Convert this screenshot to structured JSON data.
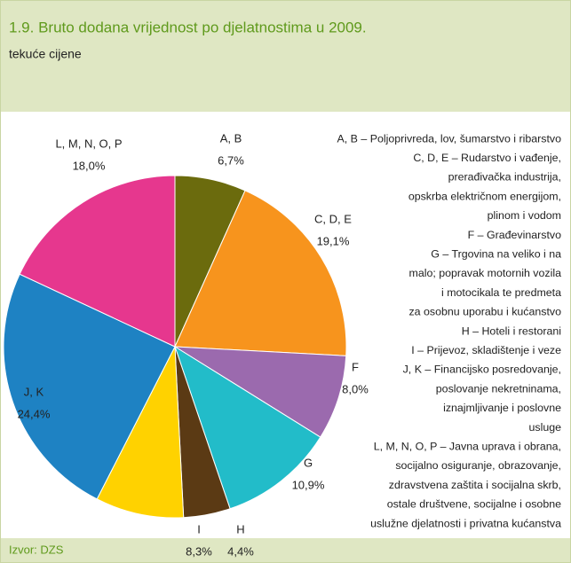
{
  "chart_data": {
    "type": "pie",
    "title": "1.9. Bruto dodana vrijednost po djelatnostima u 2009.",
    "subtitle": "tekuće cijene",
    "categories": [
      "A, B",
      "C, D, E",
      "F",
      "G",
      "H",
      "I",
      "J, K",
      "L, M, N, O, P"
    ],
    "values": [
      6.7,
      19.1,
      8.0,
      10.9,
      4.4,
      8.3,
      24.4,
      18.0
    ],
    "value_labels": [
      "6,7%",
      "19,1%",
      "8,0%",
      "10,9%",
      "4,4%",
      "8,3%",
      "24,4%",
      "18,0%"
    ],
    "colors": [
      "#6b6b0d",
      "#f7941d",
      "#9b6aae",
      "#22bcc9",
      "#5b3a14",
      "#ffd200",
      "#1e82c3",
      "#e6378e"
    ],
    "legend": [
      [
        "A, B – Poljoprivreda, lov, šumarstvo i ribarstvo"
      ],
      [
        "C, D, E – Rudarstvo i vađenje,",
        "prerađivačka industrija,",
        "opskrba električnom energijom,",
        "plinom i vodom"
      ],
      [
        "F – Građevinarstvo"
      ],
      [
        "G – Trgovina na veliko i na",
        "malo; popravak motornih vozila",
        "i motocikala te predmeta",
        "za osobnu uporabu i kućanstvo"
      ],
      [
        "H – Hoteli i restorani"
      ],
      [
        "I – Prijevoz, skladištenje i veze"
      ],
      [
        "J, K – Financijsko posredovanje,",
        "poslovanje nekretninama,",
        "iznajmljivanje i poslovne",
        "usluge"
      ],
      [
        "L, M, N, O, P – Javna uprava i obrana,",
        "socijalno osiguranje, obrazovanje,",
        "zdravstvena zaštita i socijalna skrb,",
        "ostale društvene, socijalne i osobne",
        "uslužne djelatnosti i privatna kućanstva"
      ]
    ],
    "source": "Izvor: DZS"
  }
}
